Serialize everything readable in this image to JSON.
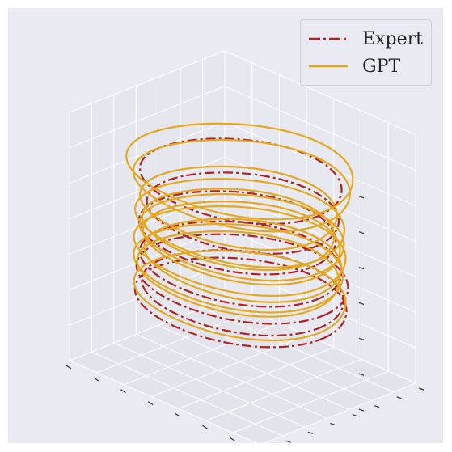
{
  "chart_data": {
    "type": "line3d",
    "title": "",
    "xlabel": "",
    "ylabel": "",
    "zlabel": "",
    "axis_tick_labels_visible": false,
    "grid": true,
    "legend_position": "top-right",
    "series": [
      {
        "name": "Expert",
        "color": "#b22222",
        "linestyle": "dashdot",
        "loops": [
          {
            "cx": 0.0,
            "cy": 0.0,
            "z": 0.85,
            "r": 0.82
          },
          {
            "cx": 0.02,
            "cy": 0.0,
            "z": 0.55,
            "r": 0.78
          },
          {
            "cx": -0.02,
            "cy": 0.02,
            "z": 0.35,
            "r": 0.8
          },
          {
            "cx": 0.0,
            "cy": 0.0,
            "z": 0.05,
            "r": 0.82
          },
          {
            "cx": 0.0,
            "cy": -0.02,
            "z": -0.1,
            "r": 0.86
          },
          {
            "cx": 0.02,
            "cy": 0.0,
            "z": -0.22,
            "r": 0.82
          },
          {
            "cx": 0.0,
            "cy": 0.0,
            "z": -0.32,
            "r": 0.86
          }
        ]
      },
      {
        "name": "GPT",
        "color": "#e3a820",
        "linestyle": "solid",
        "loops": [
          {
            "cx": 0.0,
            "cy": 0.0,
            "z": 0.95,
            "r": 0.92
          },
          {
            "cx": 0.02,
            "cy": 0.0,
            "z": 0.82,
            "r": 0.88
          },
          {
            "cx": 0.0,
            "cy": 0.02,
            "z": 0.6,
            "r": 0.8
          },
          {
            "cx": 0.0,
            "cy": 0.0,
            "z": 0.45,
            "r": 0.85
          },
          {
            "cx": -0.02,
            "cy": 0.0,
            "z": 0.38,
            "r": 0.78
          },
          {
            "cx": 0.02,
            "cy": 0.0,
            "z": 0.32,
            "r": 0.83
          },
          {
            "cx": 0.0,
            "cy": -0.02,
            "z": 0.25,
            "r": 0.8
          },
          {
            "cx": 0.0,
            "cy": 0.0,
            "z": 0.18,
            "r": 0.86
          },
          {
            "cx": 0.03,
            "cy": 0.0,
            "z": 0.1,
            "r": 0.8
          },
          {
            "cx": 0.0,
            "cy": 0.02,
            "z": 0.02,
            "r": 0.85
          },
          {
            "cx": -0.02,
            "cy": 0.0,
            "z": -0.05,
            "r": 0.82
          },
          {
            "cx": 0.0,
            "cy": 0.0,
            "z": -0.25,
            "r": 0.86
          }
        ]
      }
    ]
  }
}
